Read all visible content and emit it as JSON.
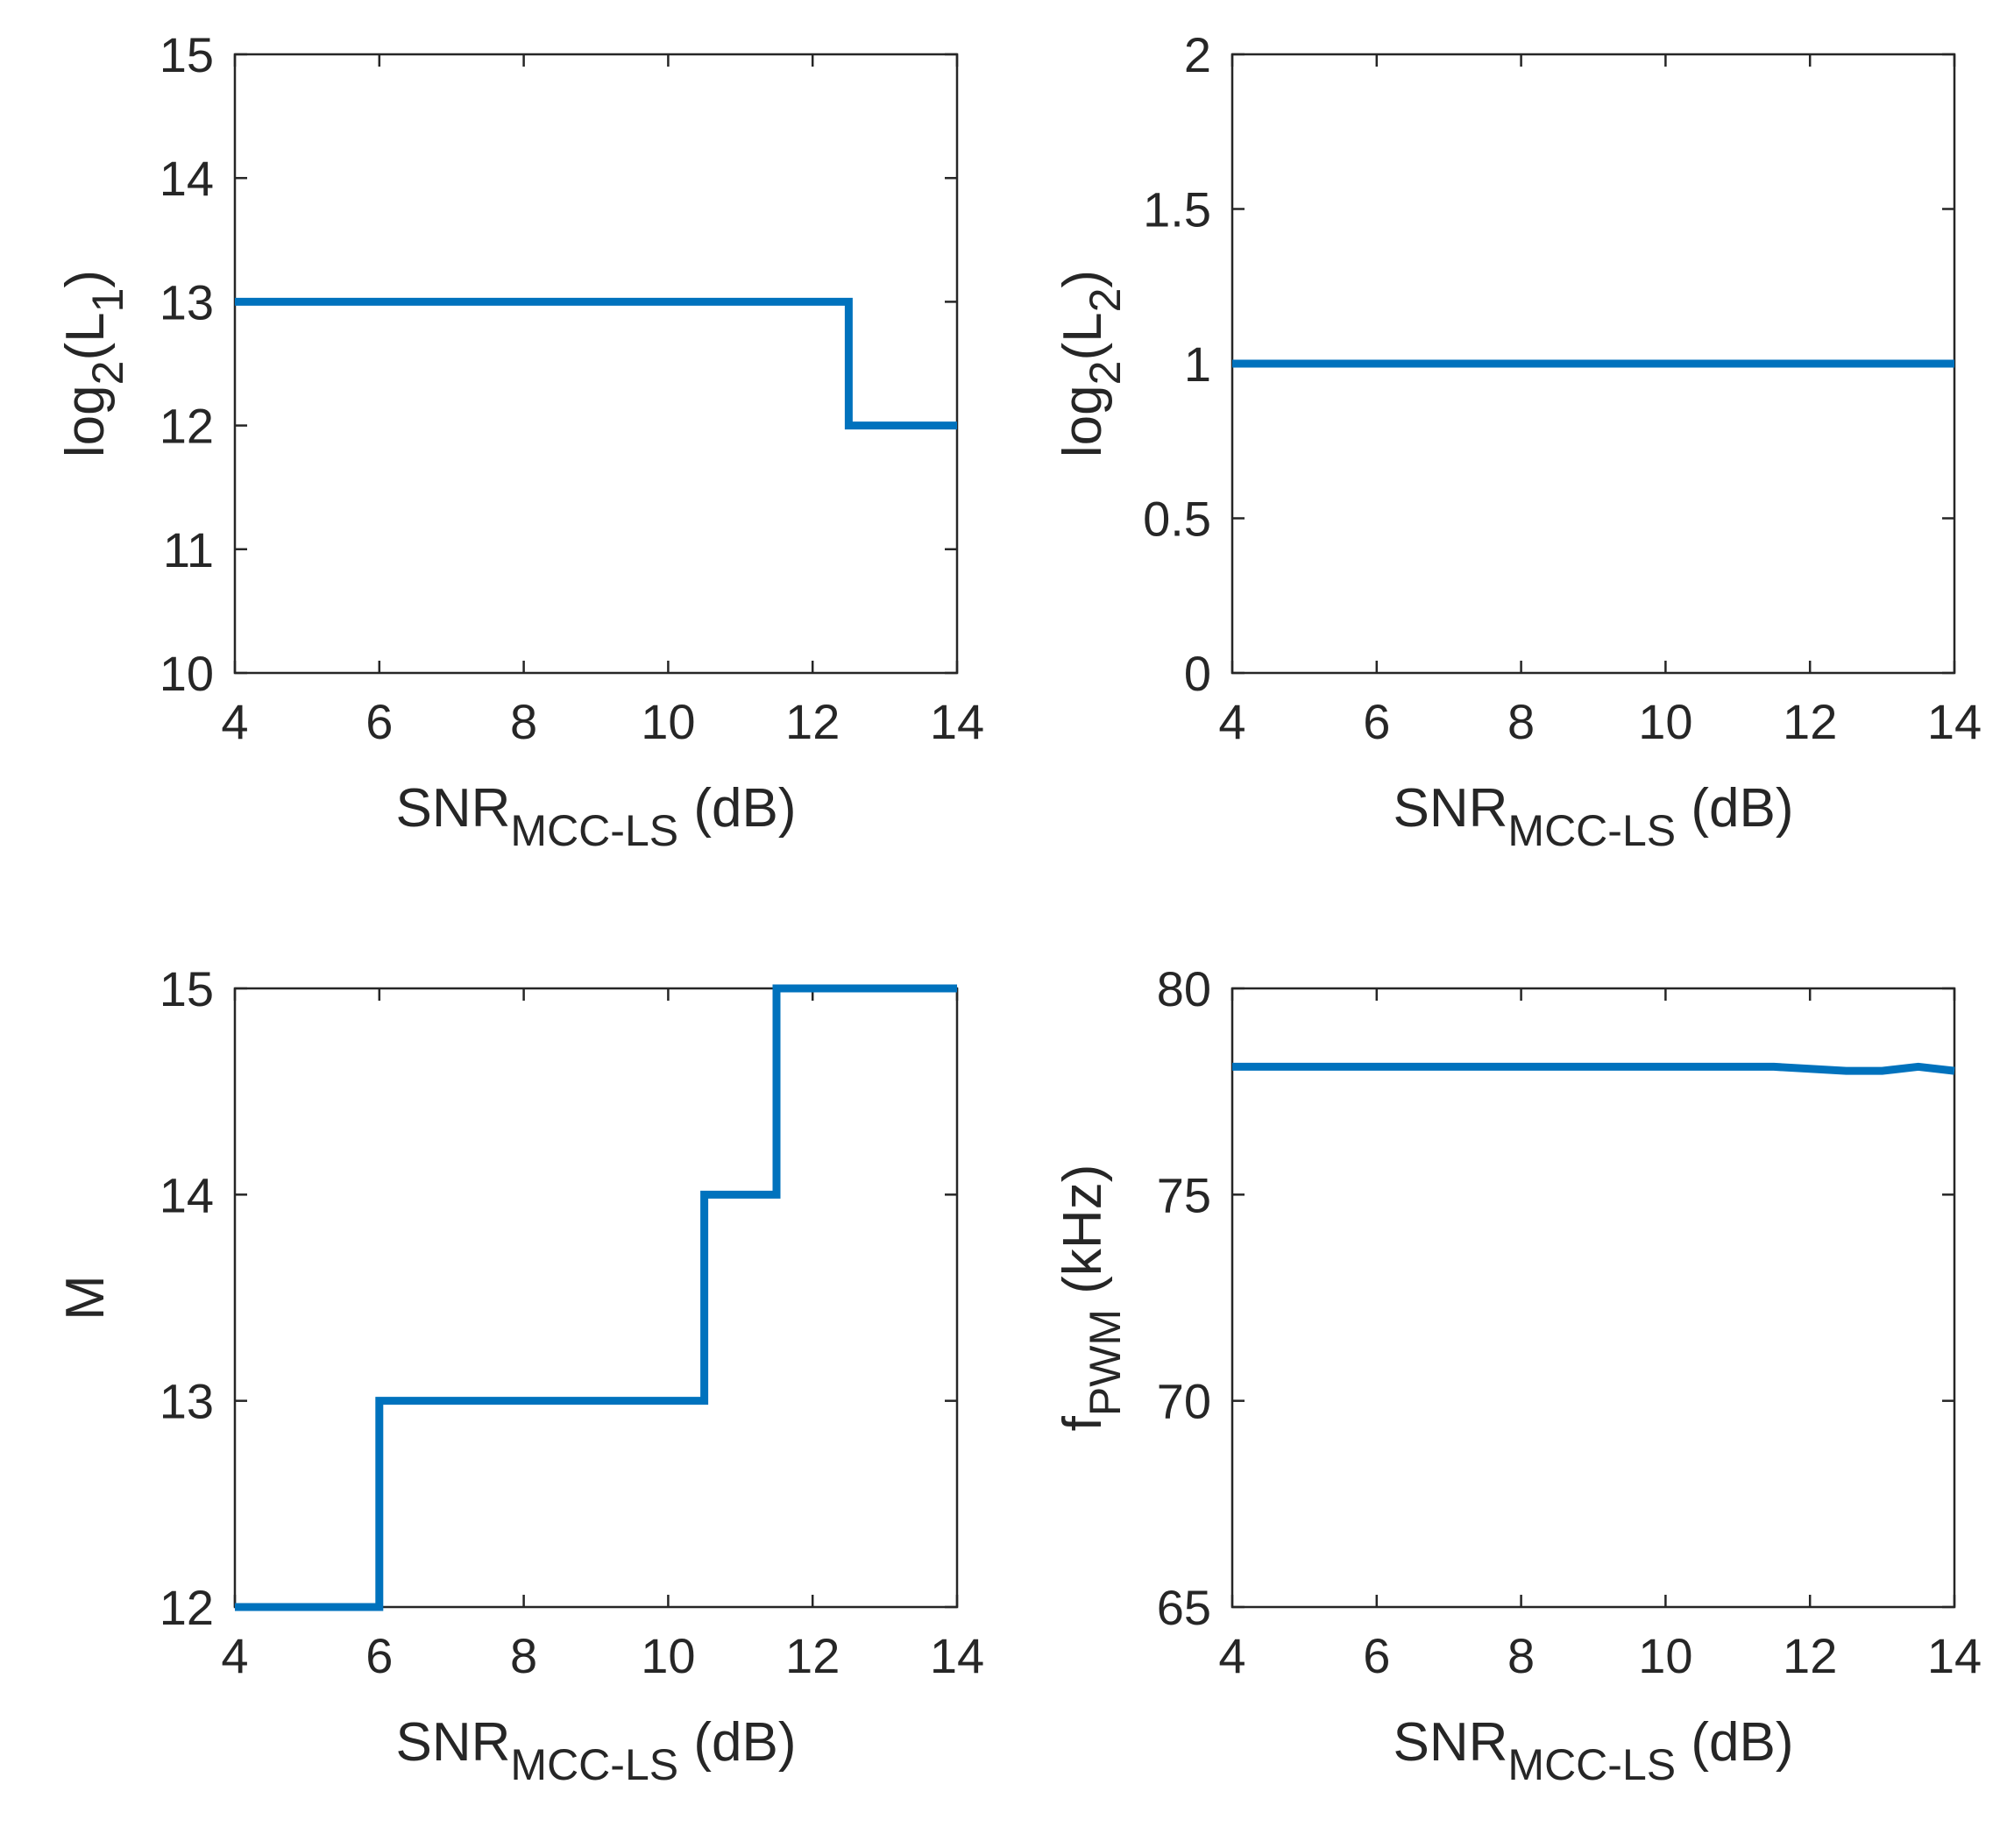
{
  "figure": {
    "line_color": "#0072BD",
    "axis_color": "#262626"
  },
  "chart_data": [
    {
      "id": "top-left",
      "type": "line",
      "title": "",
      "xlabel": {
        "main": "SNR",
        "sub": "MCC-LS",
        "suffix": " (dB)"
      },
      "ylabel": {
        "main": "log",
        "sub": "2",
        "suffix": "(L",
        "sub2": "1",
        "end": ")"
      },
      "xlim": [
        4,
        14
      ],
      "ylim": [
        10,
        15
      ],
      "xticks": [
        4,
        6,
        8,
        10,
        12,
        14
      ],
      "yticks": [
        10,
        11,
        12,
        13,
        14,
        15
      ],
      "xtick_labels": [
        "4",
        "6",
        "8",
        "10",
        "12",
        "14"
      ],
      "ytick_labels": [
        "10",
        "11",
        "12",
        "13",
        "14",
        "15"
      ],
      "grid": false,
      "series": [
        {
          "name": "log2(L1)",
          "x": [
            4,
            12.5,
            12.5,
            14
          ],
          "y": [
            13,
            13,
            12,
            12
          ]
        }
      ]
    },
    {
      "id": "top-right",
      "type": "line",
      "title": "",
      "xlabel": {
        "main": "SNR",
        "sub": "MCC-LS",
        "suffix": " (dB)"
      },
      "ylabel": {
        "main": "log",
        "sub": "2",
        "suffix": "(L",
        "sub2": "2",
        "end": ")"
      },
      "xlim": [
        4,
        14
      ],
      "ylim": [
        0,
        2
      ],
      "xticks": [
        4,
        6,
        8,
        10,
        12,
        14
      ],
      "yticks": [
        0,
        0.5,
        1,
        1.5,
        2
      ],
      "xtick_labels": [
        "4",
        "6",
        "8",
        "10",
        "12",
        "14"
      ],
      "ytick_labels": [
        "0",
        "0.5",
        "1",
        "1.5",
        "2"
      ],
      "grid": false,
      "series": [
        {
          "name": "log2(L2)",
          "x": [
            4,
            14
          ],
          "y": [
            1,
            1
          ]
        }
      ]
    },
    {
      "id": "bottom-left",
      "type": "line",
      "title": "",
      "xlabel": {
        "main": "SNR",
        "sub": "MCC-LS",
        "suffix": " (dB)"
      },
      "ylabel": {
        "main": "M",
        "sub": "",
        "suffix": "",
        "sub2": "",
        "end": ""
      },
      "xlim": [
        4,
        14
      ],
      "ylim": [
        12,
        15
      ],
      "xticks": [
        4,
        6,
        8,
        10,
        12,
        14
      ],
      "yticks": [
        12,
        13,
        14,
        15
      ],
      "xtick_labels": [
        "4",
        "6",
        "8",
        "10",
        "12",
        "14"
      ],
      "ytick_labels": [
        "12",
        "13",
        "14",
        "15"
      ],
      "grid": false,
      "series": [
        {
          "name": "M",
          "x": [
            4,
            6,
            6,
            10.5,
            10.5,
            11.5,
            11.5,
            14
          ],
          "y": [
            12,
            12,
            13,
            13,
            14,
            14,
            15,
            15
          ]
        }
      ]
    },
    {
      "id": "bottom-right",
      "type": "line",
      "title": "",
      "xlabel": {
        "main": "SNR",
        "sub": "MCC-LS",
        "suffix": " (dB)"
      },
      "ylabel": {
        "main": "f",
        "sub": "PWM",
        "suffix": " (kHz)",
        "sub2": "",
        "end": ""
      },
      "xlim": [
        4,
        14
      ],
      "ylim": [
        65,
        80
      ],
      "xticks": [
        4,
        6,
        8,
        10,
        12,
        14
      ],
      "yticks": [
        65,
        70,
        75,
        80
      ],
      "xtick_labels": [
        "4",
        "6",
        "8",
        "10",
        "12",
        "14"
      ],
      "ytick_labels": [
        "65",
        "70",
        "75",
        "80"
      ],
      "grid": false,
      "series": [
        {
          "name": "fPWM",
          "x": [
            4,
            11.5,
            12.5,
            13,
            13.5,
            14
          ],
          "y": [
            78.1,
            78.1,
            78.0,
            78.0,
            78.1,
            78.0
          ]
        }
      ]
    }
  ]
}
